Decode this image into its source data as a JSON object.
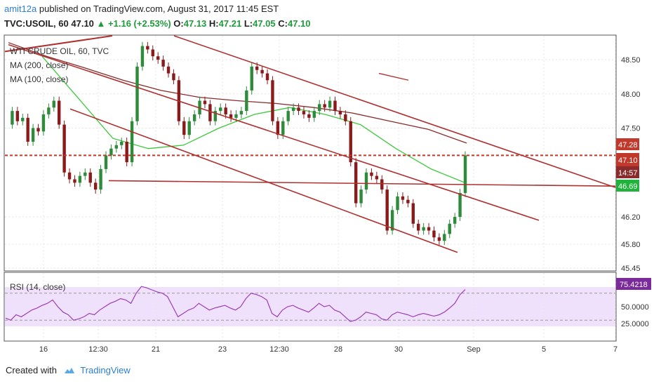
{
  "header": {
    "user": "amit12a",
    "published_text": "published on TradingView.com, August 31, 2017 11:45 EST",
    "symbol": "TVC:USOIL, 60",
    "last": "47.10",
    "change": "+1.16 (+2.53%)",
    "o_label": "O:",
    "o": "47.13",
    "h_label": "H:",
    "h": "47.21",
    "l_label": "L:",
    "l": "47.05",
    "c_label": "C:",
    "c": "47.10"
  },
  "legend": {
    "series": "WTI CRUDE OIL, 60, TVC",
    "ma200": "MA (200, close)",
    "ma100": "MA (100, close)",
    "rsi": "RSI (14, close)"
  },
  "price_badges": {
    "ma200": "47.28",
    "last": "47.10",
    "countdown": "14:57",
    "ma100": "46.69",
    "rsi": "75.4218"
  },
  "footer": {
    "created_with": "Created with",
    "brand": "TradingView"
  },
  "colors": {
    "bull_candle": "#2e8b3a",
    "bear_candle": "#8b1a1a",
    "ma200": "#8b2a2a",
    "ma100": "#3cc83c",
    "channel": "#b03030",
    "rsi_line": "#9b3fb5",
    "rsi_band": "#efe0fb",
    "badge_red": "#c0392b",
    "badge_green": "#1fb33b",
    "badge_purple": "#7a2a9a"
  },
  "chart_data": {
    "type": "candlestick",
    "title": "WTI CRUDE OIL, 60, TVC",
    "x_ticks": [
      "16",
      "12:30",
      "21",
      "23",
      "12:30",
      "28",
      "30",
      "Sep",
      "5",
      "7"
    ],
    "y_ticks": [
      "48.50",
      "48.00",
      "47.50",
      "46.20",
      "45.80",
      "45.45"
    ],
    "y_range": [
      45.42,
      48.85
    ],
    "close_path": [
      47.55,
      47.75,
      47.6,
      47.65,
      47.3,
      47.5,
      47.45,
      47.7,
      47.8,
      47.9,
      47.55,
      46.85,
      46.75,
      46.7,
      46.8,
      46.85,
      46.7,
      46.6,
      46.9,
      47.1,
      47.2,
      47.25,
      47.3,
      47.0,
      47.6,
      48.4,
      48.7,
      48.65,
      48.55,
      48.5,
      48.4,
      48.3,
      48.2,
      47.6,
      47.4,
      47.6,
      47.7,
      47.9,
      47.85,
      47.6,
      47.75,
      47.8,
      47.7,
      47.65,
      47.7,
      47.75,
      48.05,
      48.4,
      48.35,
      48.3,
      48.2,
      47.6,
      47.4,
      47.6,
      47.75,
      47.8,
      47.75,
      47.7,
      47.65,
      47.75,
      47.85,
      47.8,
      47.9,
      47.75,
      47.7,
      47.6,
      47.0,
      46.4,
      46.6,
      46.85,
      46.8,
      46.75,
      46.6,
      46.0,
      46.3,
      46.5,
      46.45,
      46.4,
      46.1,
      46.0,
      46.05,
      46.0,
      45.9,
      45.85,
      45.95,
      46.1,
      46.2,
      46.55,
      47.1
    ],
    "ma200": [
      48.75,
      48.55,
      48.38,
      48.2,
      48.05,
      47.95,
      47.9,
      47.86,
      47.8,
      47.72,
      47.6,
      47.48,
      47.28
    ],
    "ma100": [
      48.55,
      47.95,
      47.35,
      47.2,
      47.25,
      47.5,
      47.7,
      47.8,
      47.7,
      47.55,
      47.2,
      46.9,
      46.69
    ],
    "horizontal_levels": [
      47.1,
      46.69
    ],
    "channel_lines": [
      {
        "name": "upper",
        "from": [
          "Aug 15",
          48.75
        ],
        "to": [
          "Sep 6",
          46.75
        ]
      },
      {
        "name": "middle",
        "from": [
          "Aug 15",
          48.55
        ],
        "to": [
          "Sep 5",
          46.1
        ]
      },
      {
        "name": "lower",
        "from": [
          "Aug 15",
          47.6
        ],
        "to": [
          "Aug 31",
          45.7
        ]
      }
    ],
    "rsi": {
      "name": "RSI (14, close)",
      "levels": [
        70,
        30
      ],
      "y_ticks": [
        "75.4218",
        "50.0000",
        "25.0000"
      ],
      "last": 75.4218,
      "values": [
        33,
        30,
        38,
        35,
        40,
        45,
        48,
        52,
        55,
        60,
        50,
        42,
        38,
        30,
        32,
        35,
        40,
        38,
        45,
        50,
        55,
        58,
        62,
        60,
        55,
        70,
        80,
        78,
        75,
        72,
        70,
        65,
        50,
        35,
        40,
        45,
        48,
        55,
        50,
        45,
        48,
        50,
        52,
        48,
        45,
        50,
        62,
        70,
        68,
        65,
        60,
        40,
        35,
        45,
        50,
        52,
        48,
        45,
        42,
        48,
        55,
        50,
        52,
        45,
        42,
        35,
        28,
        30,
        35,
        42,
        40,
        38,
        32,
        30,
        38,
        42,
        40,
        38,
        35,
        38,
        40,
        38,
        36,
        38,
        42,
        48,
        55,
        68,
        75.4
      ]
    }
  }
}
